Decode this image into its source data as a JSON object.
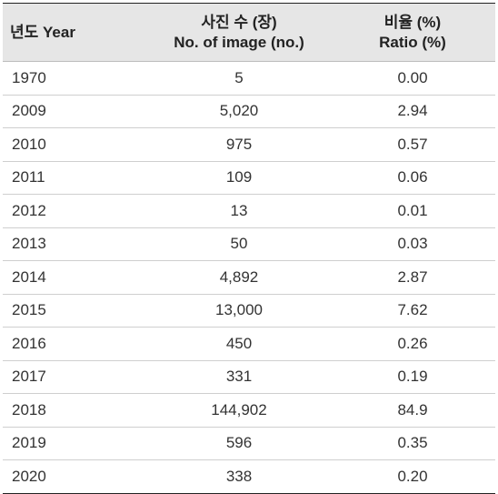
{
  "table": {
    "header": {
      "year_label": "년도  Year",
      "images_label_ko": "사진 수 (장)",
      "images_label_en": "No. of image (no.)",
      "ratio_label_ko": "비율 (%)",
      "ratio_label_en": "Ratio (%)"
    },
    "rows": [
      {
        "year": "1970",
        "images": "5",
        "ratio": "0.00"
      },
      {
        "year": "2009",
        "images": "5,020",
        "ratio": "2.94"
      },
      {
        "year": "2010",
        "images": "975",
        "ratio": "0.57"
      },
      {
        "year": "2011",
        "images": "109",
        "ratio": "0.06"
      },
      {
        "year": "2012",
        "images": "13",
        "ratio": "0.01"
      },
      {
        "year": "2013",
        "images": "50",
        "ratio": "0.03"
      },
      {
        "year": "2014",
        "images": "4,892",
        "ratio": "2.87"
      },
      {
        "year": "2015",
        "images": "13,000",
        "ratio": "7.62"
      },
      {
        "year": "2016",
        "images": "450",
        "ratio": "0.26"
      },
      {
        "year": "2017",
        "images": "331",
        "ratio": "0.19"
      },
      {
        "year": "2018",
        "images": "144,902",
        "ratio": "84.9"
      },
      {
        "year": "2019",
        "images": "596",
        "ratio": "0.35"
      },
      {
        "year": "2020",
        "images": "338",
        "ratio": "0.20"
      }
    ]
  }
}
